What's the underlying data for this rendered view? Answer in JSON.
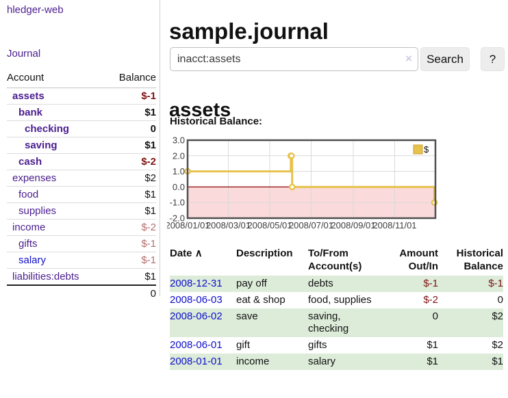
{
  "app": {
    "title": "hledger-web"
  },
  "sidebar": {
    "journal_link": "Journal",
    "accounts_table": {
      "account_header": "Account",
      "balance_header": "Balance",
      "rows": [
        {
          "name": "assets",
          "balance": "$-1",
          "indent": 0,
          "bold": true,
          "name_color": "purple",
          "balance_color": "neg"
        },
        {
          "name": "bank",
          "balance": "$1",
          "indent": 1,
          "bold": true,
          "name_color": "purple",
          "balance_color": "black"
        },
        {
          "name": "checking",
          "balance": "0",
          "indent": 2,
          "bold": true,
          "name_color": "purple",
          "balance_color": "black"
        },
        {
          "name": "saving",
          "balance": "$1",
          "indent": 2,
          "bold": true,
          "name_color": "purple",
          "balance_color": "black"
        },
        {
          "name": "cash",
          "balance": "$-2",
          "indent": 1,
          "bold": true,
          "name_color": "purple",
          "balance_color": "neg"
        },
        {
          "name": "expenses",
          "balance": "$2",
          "indent": 0,
          "bold": false,
          "name_color": "purple",
          "balance_color": "black"
        },
        {
          "name": "food",
          "balance": "$1",
          "indent": 1,
          "bold": false,
          "name_color": "purple",
          "balance_color": "black"
        },
        {
          "name": "supplies",
          "balance": "$1",
          "indent": 1,
          "bold": false,
          "name_color": "purple",
          "balance_color": "black"
        },
        {
          "name": "income",
          "balance": "$-2",
          "indent": 0,
          "bold": false,
          "name_color": "purple",
          "balance_color": "neg_light"
        },
        {
          "name": "gifts",
          "balance": "$-1",
          "indent": 1,
          "bold": false,
          "name_color": "purple",
          "balance_color": "neg_light"
        },
        {
          "name": "salary",
          "balance": "$-1",
          "indent": 1,
          "bold": false,
          "name_color": "blue",
          "balance_color": "neg_light"
        },
        {
          "name": "liabilities:debts",
          "balance": "$1",
          "indent": 0,
          "bold": false,
          "name_color": "purple",
          "balance_color": "black"
        }
      ],
      "total": "0"
    }
  },
  "main": {
    "title": "sample.journal",
    "search": {
      "value": "inacct:assets",
      "clear_icon": "×",
      "search_button": "Search",
      "help_button": "?"
    },
    "account_heading": "assets",
    "chart_label": "Historical Balance:"
  },
  "chart_data": {
    "type": "line",
    "style": "step",
    "title": "Historical Balance",
    "x_range": [
      "2008-01-01",
      "2008-12-31"
    ],
    "ylim": [
      -2,
      3
    ],
    "yticks": [
      3,
      2,
      1,
      0,
      -1,
      -2
    ],
    "ytick_labels": [
      "3.0",
      "2.0",
      "1.0",
      "0.0",
      "-1.0",
      "-2.0"
    ],
    "xticks": [
      "2008-01-01",
      "2008-03-01",
      "2008-05-01",
      "2008-07-01",
      "2008-09-01",
      "2008-11-01"
    ],
    "xtick_labels": [
      "2008/01/01",
      "2008/03/01",
      "2008/05/01",
      "2008/07/01",
      "2008/09/01",
      "2008/11/01"
    ],
    "grid": true,
    "legend": {
      "label": "$",
      "position": "top-right"
    },
    "negative_region_shaded": true,
    "series": [
      {
        "name": "$",
        "points": [
          [
            "2008-01-01",
            1
          ],
          [
            "2008-06-01",
            2
          ],
          [
            "2008-06-02",
            2
          ],
          [
            "2008-06-03",
            0
          ],
          [
            "2008-12-31",
            -1
          ]
        ]
      }
    ]
  },
  "register": {
    "headers": {
      "date": "Date",
      "sort_icon": "∧",
      "description": "Description",
      "accounts": "To/From Account(s)",
      "amount": "Amount Out/In",
      "balance": "Historical Balance"
    },
    "rows": [
      {
        "date": "2008-12-31",
        "description": "pay off",
        "accounts": "debts",
        "amount": "$-1",
        "amount_neg": true,
        "balance": "$-1",
        "balance_neg": true
      },
      {
        "date": "2008-06-03",
        "description": "eat & shop",
        "accounts": "food, supplies",
        "amount": "$-2",
        "amount_neg": true,
        "balance": "0",
        "balance_neg": false
      },
      {
        "date": "2008-06-02",
        "description": "save",
        "accounts": "saving, checking",
        "amount": "0",
        "amount_neg": false,
        "balance": "$2",
        "balance_neg": false
      },
      {
        "date": "2008-06-01",
        "description": "gift",
        "accounts": "gifts",
        "amount": "$1",
        "amount_neg": false,
        "balance": "$2",
        "balance_neg": false
      },
      {
        "date": "2008-01-01",
        "description": "income",
        "accounts": "salary",
        "amount": "$1",
        "amount_neg": false,
        "balance": "$1",
        "balance_neg": false
      }
    ]
  },
  "colors": {
    "link_purple": "#4a1d8f",
    "link_blue": "#1313cf",
    "date_link": "#0d0dcc",
    "negative": "#7f1313",
    "negative_light": "#b56d6d",
    "stripe_green": "#dcecd9",
    "chart_gold": "#e7c24b",
    "chart_gold_border": "#c8a02a",
    "chart_zero_line": "#8b0000",
    "chart_negative_fill": "#fadada",
    "chart_grid": "#dadada",
    "chart_border": "#4f4f4f",
    "axis_text": "#3c3c3c"
  }
}
